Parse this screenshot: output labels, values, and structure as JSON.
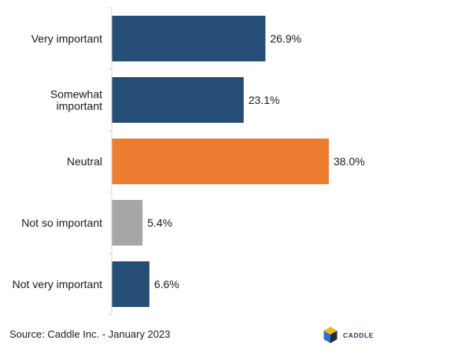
{
  "chart_data": {
    "type": "bar",
    "orientation": "horizontal",
    "title": "",
    "xlabel": "",
    "ylabel": "",
    "categories": [
      [
        "Very important"
      ],
      [
        "Somewhat",
        "important"
      ],
      [
        "Neutral"
      ],
      [
        "Not so important"
      ],
      [
        "Not very important"
      ]
    ],
    "values": [
      26.9,
      23.1,
      38.0,
      5.4,
      6.6
    ],
    "value_labels": [
      "26.9%",
      "23.1%",
      "38.0%",
      "5.4%",
      "6.6%"
    ],
    "bar_colors": [
      "#264D76",
      "#264D76",
      "#ED7D31",
      "#A6A6A6",
      "#264D76"
    ],
    "xlim": [
      0,
      38.0
    ],
    "grid": false,
    "legend": "none"
  },
  "footer": {
    "source": "Source: Caddle Inc. - January 2023"
  },
  "brand": {
    "logo_icon": "caddle-hexagon-icon",
    "name": "CADDLE",
    "colors": [
      "#F2B61F",
      "#2E6FD6",
      "#1F2D3D"
    ]
  }
}
